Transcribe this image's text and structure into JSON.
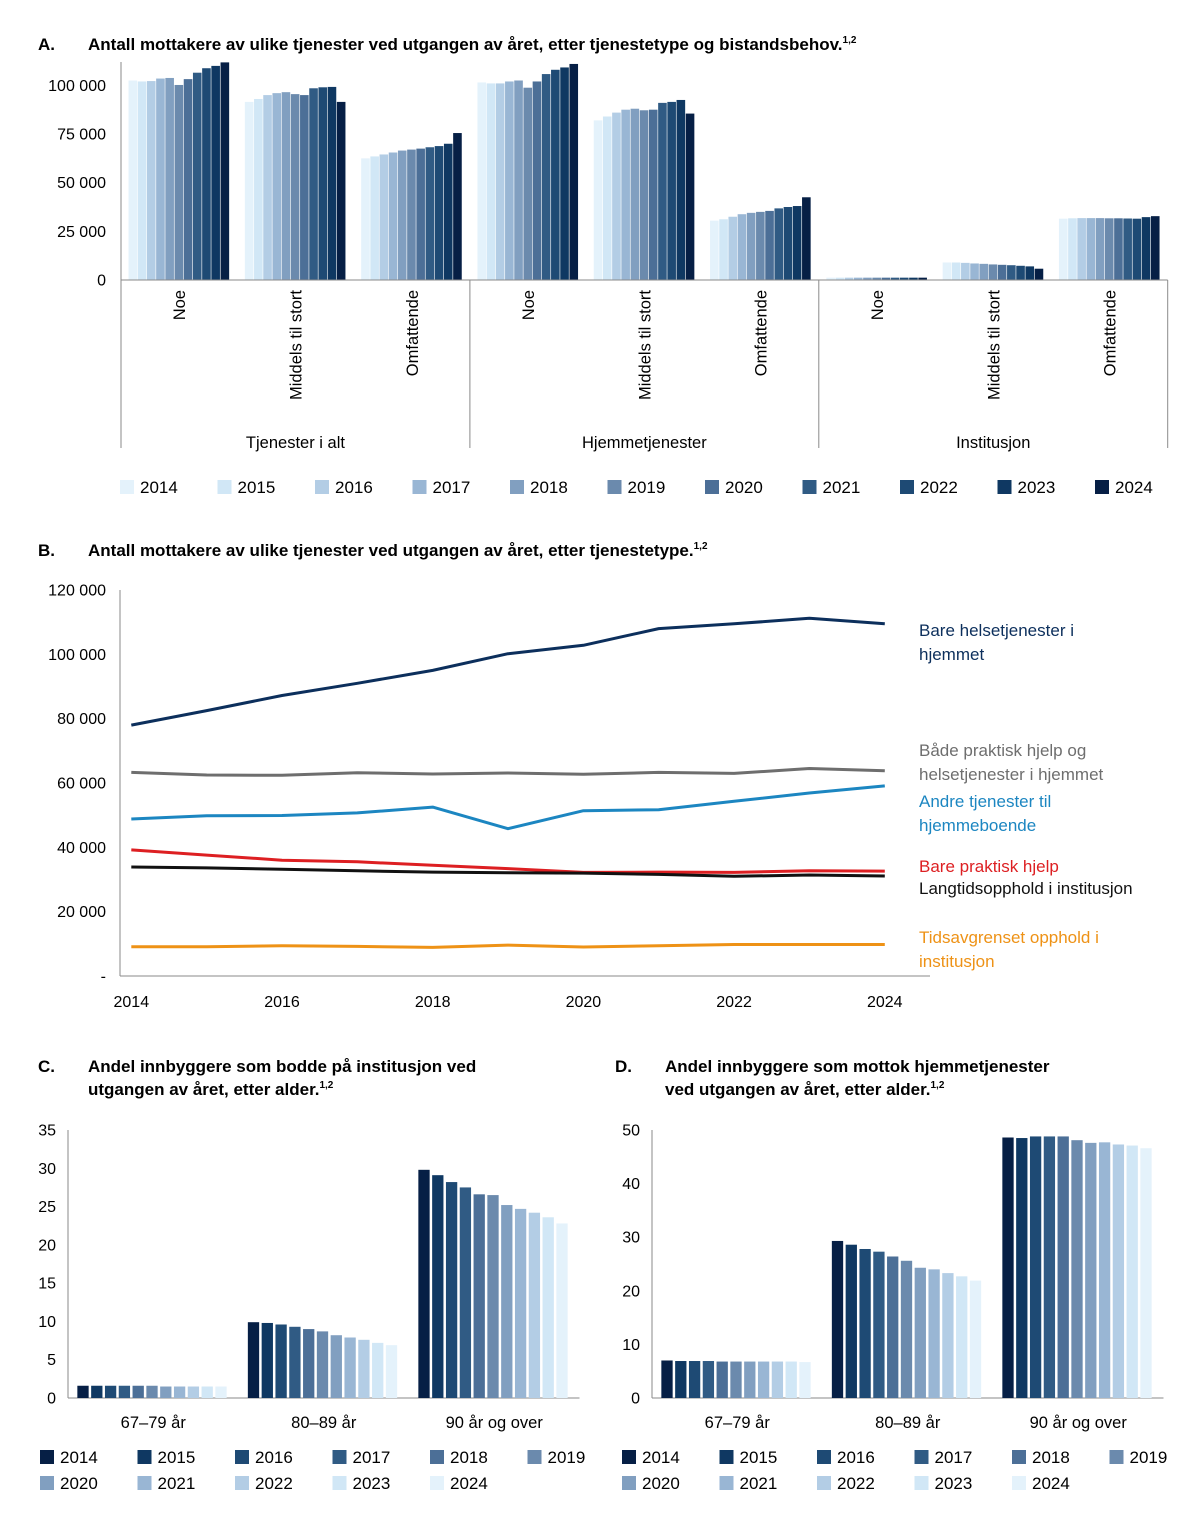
{
  "colors": {
    "years": [
      "#e4f2fb",
      "#d1e7f6",
      "#b3cde5",
      "#99b6d4",
      "#819fc0",
      "#6b8aad",
      "#4c6f97",
      "#305b84",
      "#1e4a74",
      "#0f3862",
      "#061f45"
    ],
    "series_lines": {
      "bare_helse": "#0c2f5c",
      "begge": "#6e6e6e",
      "andre": "#1c86c1",
      "praktisk": "#dd1f22",
      "langtid": "#111111",
      "tidsavgrenset": "#ee9216"
    }
  },
  "chart_data": [
    {
      "id": "A",
      "type": "bar",
      "letter": "A.",
      "title": "Antall mottakere av ulike tjenester ved utgangen av året, etter tjenestetype og bistandsbehov.",
      "title_sup": "1,2",
      "ylim": [
        0,
        112000
      ],
      "yticks": [
        {
          "value": 0,
          "label": "0"
        },
        {
          "value": 25000,
          "label": "25 000"
        },
        {
          "value": 50000,
          "label": "50 000"
        },
        {
          "value": 75000,
          "label": "75 000"
        },
        {
          "value": 100000,
          "label": "100 000"
        }
      ],
      "years": [
        "2014",
        "2015",
        "2016",
        "2017",
        "2018",
        "2019",
        "2020",
        "2021",
        "2022",
        "2023",
        "2024"
      ],
      "groups": [
        {
          "name": "Tjenester i alt",
          "categories": [
            {
              "name": "Noe",
              "values": [
                102500,
                102000,
                102200,
                103500,
                103800,
                100200,
                103200,
                106500,
                108800,
                110000,
                111800
              ]
            },
            {
              "name": "Middels til stort",
              "values": [
                91500,
                93000,
                95000,
                96000,
                96500,
                95500,
                95000,
                98500,
                99000,
                99200,
                91500
              ]
            },
            {
              "name": "Omfattende",
              "values": [
                62500,
                63500,
                64500,
                65500,
                66500,
                67000,
                67500,
                68200,
                68800,
                70000,
                75500
              ]
            }
          ]
        },
        {
          "name": "Hjemmetjenester",
          "categories": [
            {
              "name": "Noe",
              "values": [
                101500,
                101000,
                101000,
                102000,
                102500,
                98800,
                102000,
                105800,
                108000,
                109200,
                111000
              ]
            },
            {
              "name": "Middels til stort",
              "values": [
                82000,
                84000,
                86000,
                87500,
                88000,
                87200,
                87500,
                91000,
                91500,
                92500,
                85500
              ]
            },
            {
              "name": "Omfattende",
              "values": [
                30500,
                31200,
                32500,
                33800,
                34500,
                35000,
                35500,
                36800,
                37500,
                38000,
                42500
              ]
            }
          ]
        },
        {
          "name": "Institusjon",
          "categories": [
            {
              "name": "Noe",
              "values": [
                1200,
                1200,
                1200,
                1200,
                1200,
                1200,
                1200,
                1200,
                1200,
                1200,
                1200
              ]
            },
            {
              "name": "Middels til stort",
              "values": [
                9000,
                9000,
                8800,
                8500,
                8300,
                8000,
                7800,
                7600,
                7300,
                7000,
                5800
              ]
            },
            {
              "name": "Omfattende",
              "values": [
                31500,
                31700,
                31800,
                31800,
                31800,
                31700,
                31700,
                31600,
                31500,
                32300,
                32800
              ]
            }
          ]
        }
      ],
      "legend": [
        "2014",
        "2015",
        "2016",
        "2017",
        "2018",
        "2019",
        "2020",
        "2021",
        "2022",
        "2023",
        "2024"
      ]
    },
    {
      "id": "B",
      "type": "line",
      "letter": "B.",
      "title": "Antall mottakere av ulike tjenester ved utgangen av året, etter tjenestetype.",
      "title_sup": "1,2",
      "ylim": [
        0,
        120000
      ],
      "yticks": [
        {
          "value": 0,
          "label": "-"
        },
        {
          "value": 20000,
          "label": "20 000"
        },
        {
          "value": 40000,
          "label": "40 000"
        },
        {
          "value": 60000,
          "label": "60 000"
        },
        {
          "value": 80000,
          "label": "80 000"
        },
        {
          "value": 100000,
          "label": "100 000"
        },
        {
          "value": 120000,
          "label": "120 000"
        }
      ],
      "x": [
        2014,
        2015,
        2016,
        2017,
        2018,
        2019,
        2020,
        2021,
        2022,
        2023,
        2024
      ],
      "xticks": [
        2014,
        2016,
        2018,
        2020,
        2022,
        2024
      ],
      "xlim": [
        2013.85,
        2024.6
      ],
      "series": [
        {
          "key": "bare_helse",
          "label_lines": [
            "Bare helsetjenester i",
            "hjemmet"
          ],
          "values": [
            78000,
            82500,
            87200,
            91000,
            95000,
            100200,
            102800,
            108000,
            109500,
            111200,
            109500
          ]
        },
        {
          "key": "begge",
          "label_lines": [
            "Både praktisk hjelp og",
            "helsetjenester i hjemmet"
          ],
          "values": [
            63300,
            62500,
            62400,
            63200,
            62800,
            63100,
            62700,
            63300,
            63000,
            64500,
            63800
          ]
        },
        {
          "key": "andre",
          "label_lines": [
            "Andre tjenester til",
            "hjemmeboende"
          ],
          "values": [
            48800,
            49800,
            49900,
            50700,
            52500,
            45800,
            51400,
            51700,
            54300,
            56900,
            59100
          ]
        },
        {
          "key": "praktisk",
          "label_lines": [
            "Bare praktisk hjelp"
          ],
          "values": [
            39200,
            37600,
            36000,
            35500,
            34400,
            33400,
            32200,
            32300,
            32200,
            32700,
            32600
          ]
        },
        {
          "key": "langtid",
          "label_lines": [
            "Langtidsopphold i institusjon"
          ],
          "values": [
            33900,
            33600,
            33200,
            32700,
            32300,
            32100,
            32000,
            31600,
            31000,
            31400,
            31100
          ]
        },
        {
          "key": "tidsavgrenset",
          "label_lines": [
            "Tidsavgrenset opphold i",
            "institusjon"
          ],
          "values": [
            9100,
            9100,
            9400,
            9200,
            8900,
            9600,
            9000,
            9400,
            9800,
            9800,
            9800
          ]
        }
      ]
    },
    {
      "id": "C",
      "type": "bar",
      "letter": "C.",
      "title_lines": [
        "Andel innbyggere som bodde på institusjon ved",
        "utgangen av året, etter alder."
      ],
      "title_sup": "1,2",
      "ylim": [
        0,
        35
      ],
      "yticks": [
        {
          "value": 0,
          "label": "0"
        },
        {
          "value": 5,
          "label": "5"
        },
        {
          "value": 10,
          "label": "10"
        },
        {
          "value": 15,
          "label": "15"
        },
        {
          "value": 20,
          "label": "20"
        },
        {
          "value": 25,
          "label": "25"
        },
        {
          "value": 30,
          "label": "30"
        },
        {
          "value": 35,
          "label": "35"
        }
      ],
      "categories": [
        {
          "name": "67–79 år",
          "values": [
            1.6,
            1.6,
            1.6,
            1.6,
            1.6,
            1.6,
            1.5,
            1.5,
            1.5,
            1.5,
            1.5
          ]
        },
        {
          "name": "80–89 år",
          "values": [
            9.9,
            9.8,
            9.6,
            9.3,
            9.0,
            8.7,
            8.2,
            7.9,
            7.6,
            7.2,
            6.9
          ]
        },
        {
          "name": "90 år og over",
          "values": [
            29.8,
            29.1,
            28.2,
            27.5,
            26.6,
            26.5,
            25.2,
            24.7,
            24.2,
            23.6,
            22.8
          ]
        }
      ],
      "legend": [
        "2014",
        "2015",
        "2016",
        "2017",
        "2018",
        "2019",
        "2020",
        "2021",
        "2022",
        "2023",
        "2024"
      ]
    },
    {
      "id": "D",
      "type": "bar",
      "letter": "D.",
      "title_lines": [
        "Andel innbyggere som mottok hjemmetjenester",
        "ved utgangen av året, etter alder."
      ],
      "title_sup": "1,2",
      "ylim": [
        0,
        50
      ],
      "yticks": [
        {
          "value": 0,
          "label": "0"
        },
        {
          "value": 10,
          "label": "10"
        },
        {
          "value": 20,
          "label": "20"
        },
        {
          "value": 30,
          "label": "30"
        },
        {
          "value": 40,
          "label": "40"
        },
        {
          "value": 50,
          "label": "50"
        }
      ],
      "categories": [
        {
          "name": "67–79 år",
          "values": [
            7.0,
            6.9,
            6.9,
            6.9,
            6.8,
            6.8,
            6.8,
            6.8,
            6.8,
            6.8,
            6.7
          ]
        },
        {
          "name": "80–89 år",
          "values": [
            29.3,
            28.6,
            27.8,
            27.3,
            26.4,
            25.6,
            24.3,
            24.0,
            23.3,
            22.7,
            21.9
          ]
        },
        {
          "name": "90 år og over",
          "values": [
            48.6,
            48.5,
            48.8,
            48.8,
            48.8,
            48.1,
            47.6,
            47.7,
            47.3,
            47.1,
            46.6
          ]
        }
      ],
      "legend": [
        "2014",
        "2015",
        "2016",
        "2017",
        "2018",
        "2019",
        "2020",
        "2021",
        "2022",
        "2023",
        "2024"
      ]
    }
  ]
}
